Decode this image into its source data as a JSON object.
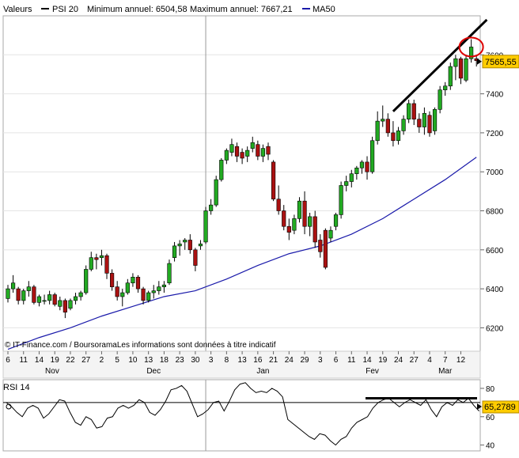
{
  "header": {
    "prefix": "Valeurs",
    "series_label": "PSI 20",
    "min_label": "Minimum annuel: 6504,58",
    "max_label": "Maximum annuel: 7667,21",
    "ma_label": "MA50"
  },
  "source_text": "© IT-Finance.com / BoursoramaLes informations sont données à titre indicatif",
  "colors": {
    "up": "#22aa22",
    "down": "#aa1111",
    "ma": "#1a1aaa",
    "last_tag": "#ffcc00",
    "highlight_circle": "#dd0000"
  },
  "chart_data": [
    {
      "type": "candlestick",
      "yticks": [
        6200,
        6400,
        6600,
        6800,
        7000,
        7200,
        7400,
        7600
      ],
      "ylim": [
        6080,
        7800
      ],
      "last_value": 7565.55,
      "last_value_label": "7565,55",
      "x_ticks": [
        {
          "label": "6",
          "i": 0
        },
        {
          "label": "11",
          "i": 3
        },
        {
          "label": "14",
          "i": 6
        },
        {
          "label": "19",
          "i": 9
        },
        {
          "label": "22",
          "i": 12
        },
        {
          "label": "27",
          "i": 15
        },
        {
          "label": "2",
          "i": 18
        },
        {
          "label": "5",
          "i": 21
        },
        {
          "label": "10",
          "i": 24
        },
        {
          "label": "13",
          "i": 27
        },
        {
          "label": "18",
          "i": 30
        },
        {
          "label": "23",
          "i": 33
        },
        {
          "label": "30",
          "i": 36
        },
        {
          "label": "3",
          "i": 39
        },
        {
          "label": "8",
          "i": 42
        },
        {
          "label": "13",
          "i": 45
        },
        {
          "label": "16",
          "i": 48
        },
        {
          "label": "21",
          "i": 51
        },
        {
          "label": "24",
          "i": 54
        },
        {
          "label": "29",
          "i": 57
        },
        {
          "label": "3",
          "i": 60
        },
        {
          "label": "6",
          "i": 63
        },
        {
          "label": "11",
          "i": 66
        },
        {
          "label": "14",
          "i": 69
        },
        {
          "label": "19",
          "i": 72
        },
        {
          "label": "24",
          "i": 75
        },
        {
          "label": "27",
          "i": 78
        },
        {
          "label": "4",
          "i": 81
        },
        {
          "label": "7",
          "i": 84
        },
        {
          "label": "12",
          "i": 87
        }
      ],
      "month_labels": [
        {
          "label": "Nov",
          "i": 8.5
        },
        {
          "label": "Dec",
          "i": 28
        },
        {
          "label": "Jan",
          "i": 49
        },
        {
          "label": "Fev",
          "i": 70
        },
        {
          "label": "Mar",
          "i": 84
        }
      ],
      "vline_i": 38,
      "candles": [
        [
          6350,
          6420,
          6330,
          6400
        ],
        [
          6400,
          6470,
          6380,
          6430
        ],
        [
          6400,
          6410,
          6320,
          6340
        ],
        [
          6340,
          6400,
          6320,
          6390
        ],
        [
          6390,
          6440,
          6360,
          6410
        ],
        [
          6410,
          6420,
          6320,
          6330
        ],
        [
          6330,
          6370,
          6310,
          6360
        ],
        [
          6340,
          6370,
          6320,
          6340
        ],
        [
          6340,
          6390,
          6320,
          6370
        ],
        [
          6370,
          6380,
          6310,
          6320
        ],
        [
          6310,
          6360,
          6290,
          6340
        ],
        [
          6340,
          6350,
          6250,
          6280
        ],
        [
          6300,
          6350,
          6290,
          6340
        ],
        [
          6340,
          6380,
          6320,
          6360
        ],
        [
          6360,
          6390,
          6340,
          6380
        ],
        [
          6380,
          6520,
          6370,
          6500
        ],
        [
          6500,
          6590,
          6490,
          6560
        ],
        [
          6560,
          6580,
          6500,
          6550
        ],
        [
          6560,
          6600,
          6520,
          6570
        ],
        [
          6570,
          6580,
          6450,
          6480
        ],
        [
          6480,
          6500,
          6390,
          6410
        ],
        [
          6410,
          6440,
          6340,
          6360
        ],
        [
          6360,
          6400,
          6310,
          6380
        ],
        [
          6380,
          6450,
          6370,
          6430
        ],
        [
          6430,
          6480,
          6410,
          6460
        ],
        [
          6460,
          6470,
          6380,
          6400
        ],
        [
          6400,
          6410,
          6320,
          6340
        ],
        [
          6340,
          6390,
          6330,
          6380
        ],
        [
          6380,
          6420,
          6350,
          6390
        ],
        [
          6390,
          6440,
          6370,
          6410
        ],
        [
          6410,
          6440,
          6380,
          6420
        ],
        [
          6430,
          6550,
          6420,
          6530
        ],
        [
          6560,
          6640,
          6540,
          6620
        ],
        [
          6620,
          6650,
          6570,
          6630
        ],
        [
          6640,
          6660,
          6600,
          6650
        ],
        [
          6650,
          6680,
          6580,
          6600
        ],
        [
          6600,
          6610,
          6490,
          6520
        ],
        [
          6620,
          6650,
          6600,
          6630
        ],
        [
          6640,
          6820,
          6630,
          6800
        ],
        [
          6800,
          6860,
          6780,
          6830
        ],
        [
          6830,
          6980,
          6820,
          6960
        ],
        [
          6960,
          7070,
          6950,
          7060
        ],
        [
          7060,
          7120,
          7040,
          7110
        ],
        [
          7100,
          7170,
          7080,
          7140
        ],
        [
          7130,
          7150,
          7050,
          7080
        ],
        [
          7100,
          7120,
          7040,
          7070
        ],
        [
          7080,
          7130,
          7050,
          7110
        ],
        [
          7120,
          7180,
          7100,
          7150
        ],
        [
          7140,
          7160,
          7060,
          7080
        ],
        [
          7080,
          7140,
          7050,
          7120
        ],
        [
          7130,
          7150,
          7060,
          7090
        ],
        [
          7050,
          7060,
          6850,
          6860
        ],
        [
          6860,
          6930,
          6780,
          6800
        ],
        [
          6800,
          6830,
          6700,
          6720
        ],
        [
          6720,
          6760,
          6650,
          6690
        ],
        [
          6700,
          6780,
          6680,
          6760
        ],
        [
          6760,
          6870,
          6740,
          6850
        ],
        [
          6850,
          6900,
          6680,
          6720
        ],
        [
          6720,
          6790,
          6670,
          6770
        ],
        [
          6770,
          6800,
          6610,
          6640
        ],
        [
          6650,
          6680,
          6560,
          6590
        ],
        [
          6700,
          6710,
          6500,
          6510
        ],
        [
          6660,
          6720,
          6640,
          6700
        ],
        [
          6720,
          6790,
          6700,
          6780
        ],
        [
          6780,
          6950,
          6760,
          6930
        ],
        [
          6930,
          6980,
          6900,
          6950
        ],
        [
          6950,
          7010,
          6920,
          6990
        ],
        [
          6990,
          7030,
          6960,
          7020
        ],
        [
          7020,
          7060,
          6990,
          7050
        ],
        [
          7050,
          7080,
          6960,
          7000
        ],
        [
          7000,
          7180,
          6990,
          7160
        ],
        [
          7160,
          7310,
          7140,
          7260
        ],
        [
          7260,
          7340,
          7230,
          7270
        ],
        [
          7270,
          7300,
          7180,
          7200
        ],
        [
          7200,
          7260,
          7130,
          7160
        ],
        [
          7160,
          7230,
          7140,
          7210
        ],
        [
          7210,
          7290,
          7190,
          7270
        ],
        [
          7270,
          7370,
          7250,
          7350
        ],
        [
          7350,
          7370,
          7240,
          7270
        ],
        [
          7270,
          7300,
          7200,
          7230
        ],
        [
          7230,
          7330,
          7190,
          7300
        ],
        [
          7290,
          7310,
          7180,
          7200
        ],
        [
          7210,
          7330,
          7190,
          7320
        ],
        [
          7320,
          7440,
          7300,
          7420
        ],
        [
          7420,
          7460,
          7390,
          7440
        ],
        [
          7440,
          7560,
          7420,
          7540
        ],
        [
          7540,
          7600,
          7470,
          7580
        ],
        [
          7580,
          7590,
          7450,
          7480
        ],
        [
          7470,
          7600,
          7460,
          7580
        ],
        [
          7580,
          7680,
          7560,
          7640
        ],
        [
          7580,
          7600,
          7540,
          7570
        ]
      ],
      "ma50": [
        [
          0,
          6090
        ],
        [
          6,
          6150
        ],
        [
          12,
          6200
        ],
        [
          18,
          6260
        ],
        [
          24,
          6310
        ],
        [
          30,
          6360
        ],
        [
          36,
          6390
        ],
        [
          42,
          6450
        ],
        [
          48,
          6520
        ],
        [
          54,
          6580
        ],
        [
          60,
          6620
        ],
        [
          66,
          6680
        ],
        [
          72,
          6760
        ],
        [
          78,
          6860
        ],
        [
          84,
          6960
        ],
        [
          90,
          7075
        ]
      ],
      "trend_line": [
        [
          74,
          7310
        ],
        [
          92,
          7780
        ]
      ]
    },
    {
      "type": "line",
      "label": "RSI 14",
      "yticks": [
        40,
        60,
        80
      ],
      "ylim": [
        37,
        85
      ],
      "reference_line": 70,
      "last_value_label": "65,2789",
      "horizontal_resistance": 73,
      "series": [
        {
          "name": "RSI 14",
          "values": [
            [
              0,
              70
            ],
            [
              3,
              67
            ],
            [
              6,
              63
            ],
            [
              9,
              60
            ],
            [
              12,
              66
            ],
            [
              15,
              68
            ],
            [
              18,
              66
            ],
            [
              21,
              59
            ],
            [
              24,
              62
            ],
            [
              27,
              67
            ],
            [
              30,
              72
            ],
            [
              33,
              71
            ],
            [
              36,
              63
            ],
            [
              39,
              56
            ],
            [
              42,
              54
            ],
            [
              45,
              60
            ],
            [
              48,
              58
            ],
            [
              51,
              52
            ],
            [
              54,
              53
            ],
            [
              57,
              59
            ],
            [
              60,
              60
            ],
            [
              63,
              66
            ],
            [
              66,
              68
            ],
            [
              69,
              66
            ],
            [
              72,
              68
            ],
            [
              75,
              72
            ],
            [
              78,
              70
            ],
            [
              81,
              63
            ],
            [
              84,
              61
            ],
            [
              87,
              65
            ],
            [
              90,
              71
            ],
            [
              93,
              79
            ],
            [
              96,
              80
            ],
            [
              99,
              82
            ],
            [
              102,
              78
            ],
            [
              105,
              69
            ],
            [
              108,
              60
            ],
            [
              111,
              62
            ],
            [
              114,
              65
            ],
            [
              117,
              70
            ],
            [
              120,
              71
            ],
            [
              123,
              64
            ],
            [
              126,
              71
            ],
            [
              129,
              79
            ],
            [
              132,
              83
            ],
            [
              135,
              84
            ],
            [
              138,
              80
            ],
            [
              141,
              77
            ],
            [
              144,
              78
            ],
            [
              147,
              77
            ],
            [
              150,
              80
            ],
            [
              153,
              78
            ],
            [
              156,
              74
            ],
            [
              159,
              58
            ],
            [
              162,
              55
            ],
            [
              165,
              52
            ],
            [
              168,
              49
            ],
            [
              171,
              46
            ],
            [
              174,
              44
            ],
            [
              177,
              48
            ],
            [
              180,
              47
            ],
            [
              183,
              43
            ],
            [
              186,
              40
            ],
            [
              189,
              44
            ],
            [
              192,
              46
            ],
            [
              195,
              52
            ],
            [
              198,
              56
            ],
            [
              201,
              58
            ],
            [
              204,
              60
            ],
            [
              207,
              66
            ],
            [
              210,
              70
            ],
            [
              213,
              72
            ],
            [
              216,
              73
            ],
            [
              219,
              70
            ],
            [
              222,
              67
            ],
            [
              225,
              70
            ],
            [
              228,
              72
            ],
            [
              231,
              70
            ],
            [
              234,
              68
            ],
            [
              237,
              72
            ],
            [
              240,
              65
            ],
            [
              243,
              60
            ],
            [
              246,
              67
            ],
            [
              249,
              70
            ],
            [
              252,
              68
            ],
            [
              255,
              72
            ],
            [
              258,
              70
            ],
            [
              261,
              73
            ],
            [
              264,
              68
            ],
            [
              267,
              64
            ]
          ]
        }
      ]
    }
  ]
}
